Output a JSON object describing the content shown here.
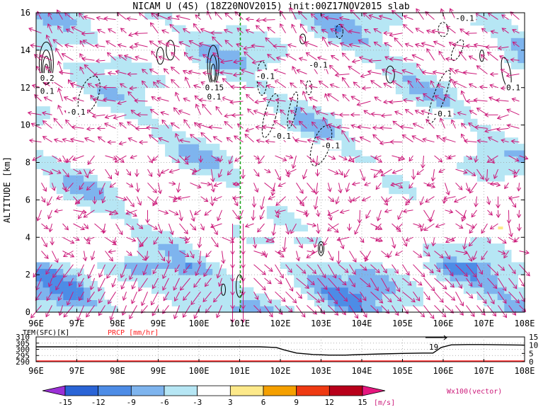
{
  "chart_data": [
    {
      "type": "heatmap",
      "title": "NICAM U (4S) (18Z20NOV2015) init:00Z17NOV2015 slab",
      "xlabel": "",
      "ylabel": "ALTITUDE [km]",
      "x_ticks": [
        "96E",
        "97E",
        "98E",
        "99E",
        "100E",
        "101E",
        "102E",
        "103E",
        "104E",
        "105E",
        "106E",
        "107E",
        "108E"
      ],
      "xlim": [
        96,
        108
      ],
      "y_ticks": [
        "0",
        "2",
        "4",
        "6",
        "8",
        "10",
        "12",
        "14",
        "16"
      ],
      "ylim": [
        0,
        16
      ],
      "grid": true,
      "marker_line_lon": 101,
      "colorbar": {
        "levels": [
          "-15",
          "-12",
          "-9",
          "-6",
          "-3",
          "3",
          "6",
          "9",
          "12",
          "15"
        ],
        "unit": "[m/s]",
        "colors": [
          "#9b30d6",
          "#2a64d6",
          "#4d8ce6",
          "#7eb4ee",
          "#b6e6f4",
          "#ffffff",
          "#fde98a",
          "#f5a000",
          "#ef3a12",
          "#b8001a",
          "#e6177f"
        ]
      },
      "vector_label": "Wx100(vector)",
      "vector_color": "#cc1a7a",
      "contour_labels": [
        {
          "text": "0.2",
          "lon": 96.1,
          "alt": 12.4
        },
        {
          "text": "0.1",
          "lon": 96.1,
          "alt": 11.7
        },
        {
          "text": "-0.1",
          "lon": 96.75,
          "alt": 10.6
        },
        {
          "text": "0.15",
          "lon": 100.15,
          "alt": 11.9
        },
        {
          "text": "0.1",
          "lon": 100.2,
          "alt": 11.4
        },
        {
          "text": "-0.1",
          "lon": 101.4,
          "alt": 12.5
        },
        {
          "text": "-0.1",
          "lon": 101.8,
          "alt": 9.3
        },
        {
          "text": "-0.1",
          "lon": 102.7,
          "alt": 13.1
        },
        {
          "text": "-0.1",
          "lon": 103.0,
          "alt": 8.8
        },
        {
          "text": "-0.1",
          "lon": 105.75,
          "alt": 10.5
        },
        {
          "text": "-0.1",
          "lon": 106.3,
          "alt": 15.6
        },
        {
          "text": "0.1",
          "lon": 107.55,
          "alt": 11.9
        }
      ]
    },
    {
      "type": "line",
      "legend": [
        "TEM(SFC)[K]",
        "PRCP [mm/hr]"
      ],
      "left_ticks": [
        "310",
        "305",
        "300",
        "295",
        "290"
      ],
      "left_ylim": [
        290,
        310
      ],
      "right_ticks": [
        "15",
        "10",
        "5",
        "0"
      ],
      "right_ylim": [
        0,
        15
      ],
      "x_ticks": [
        "96E",
        "97E",
        "98E",
        "99E",
        "100E",
        "101E",
        "102E",
        "103E",
        "104E",
        "105E",
        "106E",
        "107E",
        "108E"
      ],
      "xlim": [
        96,
        108
      ],
      "annotation": "19",
      "series": [
        {
          "name": "TEM(SFC)[K]",
          "color": "#000000",
          "x": [
            96,
            97,
            98,
            99,
            100,
            101,
            101.5,
            101.9,
            102.1,
            102.4,
            102.8,
            103.2,
            103.6,
            104.0,
            104.5,
            105.0,
            105.5,
            105.75,
            105.95,
            106.2,
            106.6,
            107.0,
            107.5,
            108
          ],
          "values": [
            302.0,
            302.0,
            302.0,
            302.0,
            302.0,
            302.0,
            302.0,
            301.5,
            299.5,
            297.0,
            295.8,
            295.3,
            295.3,
            295.8,
            296.3,
            296.7,
            297.0,
            297.0,
            301.5,
            303.6,
            303.8,
            303.8,
            303.6,
            303.4
          ]
        },
        {
          "name": "PRCP [mm/hr]",
          "color": "#ff2020",
          "x": [
            96,
            108
          ],
          "values": [
            0,
            0
          ]
        }
      ]
    }
  ]
}
